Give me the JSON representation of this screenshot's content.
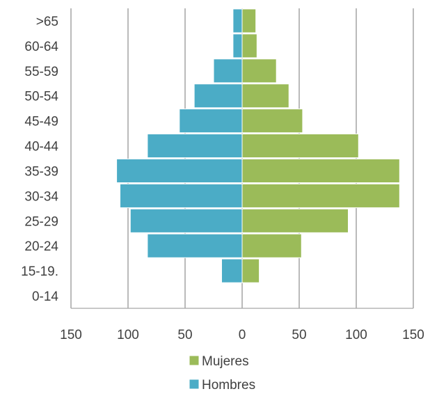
{
  "chart_data": {
    "type": "bar",
    "orientation": "horizontal",
    "layout": "population-pyramid",
    "categories": [
      ">65",
      "60-64",
      "55-59",
      "50-54",
      "45-49",
      "40-44",
      "35-39",
      "30-34",
      "25-29",
      "20-24",
      "15-19.",
      "0-14"
    ],
    "series": [
      {
        "name": "Mujeres",
        "color": "#9bbb59",
        "side": "right",
        "values": [
          12,
          13,
          30,
          41,
          53,
          102,
          138,
          138,
          93,
          52,
          15,
          0
        ]
      },
      {
        "name": "Hombres",
        "color": "#4bacc6",
        "side": "left",
        "values": [
          8,
          8,
          25,
          42,
          55,
          83,
          110,
          107,
          98,
          83,
          18,
          0
        ]
      }
    ],
    "xlim": [
      -150,
      150
    ],
    "x_tick_values": [
      -150,
      -100,
      -50,
      0,
      50,
      100,
      150
    ],
    "x_tick_labels": [
      "150",
      "100",
      "50",
      "0",
      "50",
      "100",
      "150"
    ],
    "title": "",
    "xlabel": "",
    "ylabel": "",
    "grid": "vertical",
    "legend": {
      "position": "bottom",
      "entries": [
        "Mujeres",
        "Hombres"
      ]
    }
  }
}
